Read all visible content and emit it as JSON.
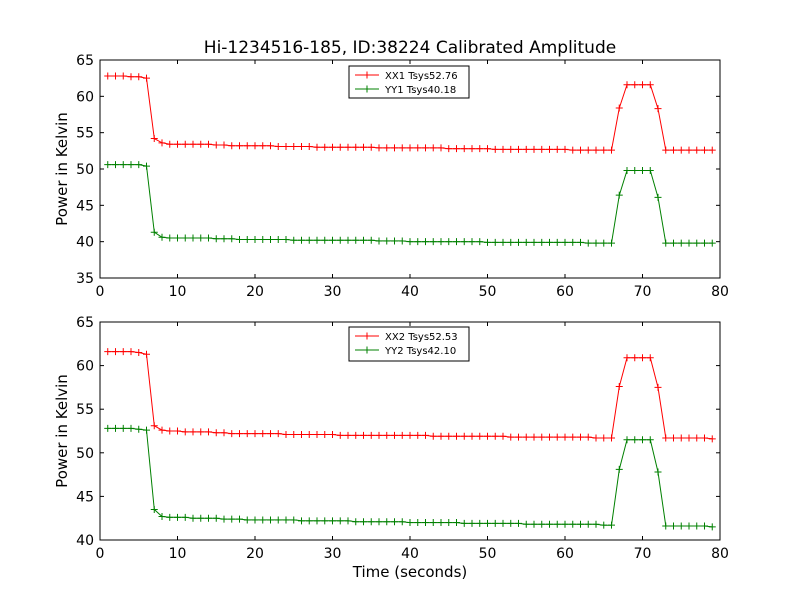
{
  "figure": {
    "title": "Hi-1234516-185, ID:38224 Calibrated Amplitude",
    "colors": {
      "red": "#ff0000",
      "green": "#008000"
    }
  },
  "chart_data": [
    {
      "type": "line",
      "title": "Hi-1234516-185, ID:38224 Calibrated Amplitude",
      "xlabel": "",
      "ylabel": "Power in Kelvin",
      "xlim": [
        0,
        80
      ],
      "ylim": [
        35,
        65
      ],
      "xticks": [
        0,
        10,
        20,
        30,
        40,
        50,
        60,
        70,
        80
      ],
      "yticks": [
        35,
        40,
        45,
        50,
        55,
        60,
        65
      ],
      "grid": false,
      "legend_position": "top-center",
      "x": [
        1,
        2,
        3,
        4,
        5,
        6,
        7,
        8,
        9,
        10,
        11,
        12,
        13,
        14,
        15,
        16,
        17,
        18,
        19,
        20,
        21,
        22,
        23,
        24,
        25,
        26,
        27,
        28,
        29,
        30,
        31,
        32,
        33,
        34,
        35,
        36,
        37,
        38,
        39,
        40,
        41,
        42,
        43,
        44,
        45,
        46,
        47,
        48,
        49,
        50,
        51,
        52,
        53,
        54,
        55,
        56,
        57,
        58,
        59,
        60,
        61,
        62,
        63,
        64,
        65,
        66,
        67,
        68,
        69,
        70,
        71,
        72,
        73,
        74,
        75,
        76,
        77,
        78,
        79
      ],
      "series": [
        {
          "name": "XX1 Tsys52.76",
          "color": "#ff0000",
          "values": [
            62.8,
            62.8,
            62.8,
            62.7,
            62.7,
            62.5,
            54.2,
            53.6,
            53.4,
            53.4,
            53.4,
            53.4,
            53.4,
            53.4,
            53.3,
            53.3,
            53.2,
            53.2,
            53.2,
            53.2,
            53.2,
            53.2,
            53.1,
            53.1,
            53.1,
            53.1,
            53.1,
            53.0,
            53.0,
            53.0,
            53.0,
            53.0,
            53.0,
            53.0,
            53.0,
            52.9,
            52.9,
            52.9,
            52.9,
            52.9,
            52.9,
            52.9,
            52.9,
            52.9,
            52.8,
            52.8,
            52.8,
            52.8,
            52.8,
            52.8,
            52.7,
            52.7,
            52.7,
            52.7,
            52.7,
            52.7,
            52.7,
            52.7,
            52.7,
            52.7,
            52.6,
            52.6,
            52.6,
            52.6,
            52.6,
            52.6,
            58.4,
            61.6,
            61.6,
            61.6,
            61.6,
            58.3,
            52.6,
            52.6,
            52.6,
            52.6,
            52.6,
            52.6,
            52.6
          ]
        },
        {
          "name": "YY1 Tsys40.18",
          "color": "#008000",
          "values": [
            50.6,
            50.6,
            50.6,
            50.6,
            50.6,
            50.4,
            41.3,
            40.6,
            40.5,
            40.5,
            40.5,
            40.5,
            40.5,
            40.5,
            40.4,
            40.4,
            40.4,
            40.3,
            40.3,
            40.3,
            40.3,
            40.3,
            40.3,
            40.3,
            40.2,
            40.2,
            40.2,
            40.2,
            40.2,
            40.2,
            40.2,
            40.2,
            40.2,
            40.2,
            40.2,
            40.1,
            40.1,
            40.1,
            40.1,
            40.0,
            40.0,
            40.0,
            40.0,
            40.0,
            40.0,
            40.0,
            40.0,
            40.0,
            40.0,
            39.9,
            39.9,
            39.9,
            39.9,
            39.9,
            39.9,
            39.9,
            39.9,
            39.9,
            39.9,
            39.9,
            39.9,
            39.9,
            39.8,
            39.8,
            39.8,
            39.8,
            46.4,
            49.8,
            49.8,
            49.8,
            49.8,
            46.1,
            39.8,
            39.8,
            39.8,
            39.8,
            39.8,
            39.8,
            39.8
          ]
        }
      ]
    },
    {
      "type": "line",
      "title": "",
      "xlabel": "Time (seconds)",
      "ylabel": "Power in Kelvin",
      "xlim": [
        0,
        80
      ],
      "ylim": [
        40,
        65
      ],
      "xticks": [
        0,
        10,
        20,
        30,
        40,
        50,
        60,
        70,
        80
      ],
      "yticks": [
        40,
        45,
        50,
        55,
        60,
        65
      ],
      "grid": false,
      "legend_position": "top-center",
      "x": [
        1,
        2,
        3,
        4,
        5,
        6,
        7,
        8,
        9,
        10,
        11,
        12,
        13,
        14,
        15,
        16,
        17,
        18,
        19,
        20,
        21,
        22,
        23,
        24,
        25,
        26,
        27,
        28,
        29,
        30,
        31,
        32,
        33,
        34,
        35,
        36,
        37,
        38,
        39,
        40,
        41,
        42,
        43,
        44,
        45,
        46,
        47,
        48,
        49,
        50,
        51,
        52,
        53,
        54,
        55,
        56,
        57,
        58,
        59,
        60,
        61,
        62,
        63,
        64,
        65,
        66,
        67,
        68,
        69,
        70,
        71,
        72,
        73,
        74,
        75,
        76,
        77,
        78,
        79
      ],
      "series": [
        {
          "name": "XX2 Tsys52.53",
          "color": "#ff0000",
          "values": [
            61.6,
            61.6,
            61.6,
            61.6,
            61.5,
            61.3,
            53.1,
            52.6,
            52.5,
            52.5,
            52.4,
            52.4,
            52.4,
            52.4,
            52.3,
            52.3,
            52.2,
            52.2,
            52.2,
            52.2,
            52.2,
            52.2,
            52.2,
            52.1,
            52.1,
            52.1,
            52.1,
            52.1,
            52.1,
            52.1,
            52.0,
            52.0,
            52.0,
            52.0,
            52.0,
            52.0,
            52.0,
            52.0,
            52.0,
            52.0,
            52.0,
            52.0,
            51.9,
            51.9,
            51.9,
            51.9,
            51.9,
            51.9,
            51.9,
            51.9,
            51.9,
            51.9,
            51.8,
            51.8,
            51.8,
            51.8,
            51.8,
            51.8,
            51.8,
            51.8,
            51.8,
            51.8,
            51.8,
            51.7,
            51.7,
            51.7,
            57.6,
            60.9,
            60.9,
            60.9,
            60.9,
            57.5,
            51.7,
            51.7,
            51.7,
            51.7,
            51.7,
            51.7,
            51.6
          ]
        },
        {
          "name": "YY2 Tsys42.10",
          "color": "#008000",
          "values": [
            52.8,
            52.8,
            52.8,
            52.8,
            52.7,
            52.6,
            43.5,
            42.7,
            42.6,
            42.6,
            42.6,
            42.5,
            42.5,
            42.5,
            42.5,
            42.4,
            42.4,
            42.4,
            42.3,
            42.3,
            42.3,
            42.3,
            42.3,
            42.3,
            42.3,
            42.2,
            42.2,
            42.2,
            42.2,
            42.2,
            42.2,
            42.2,
            42.1,
            42.1,
            42.1,
            42.1,
            42.1,
            42.1,
            42.1,
            42.0,
            42.0,
            42.0,
            42.0,
            42.0,
            42.0,
            42.0,
            41.9,
            41.9,
            41.9,
            41.9,
            41.9,
            41.9,
            41.9,
            41.9,
            41.8,
            41.8,
            41.8,
            41.8,
            41.8,
            41.8,
            41.8,
            41.8,
            41.8,
            41.8,
            41.7,
            41.7,
            48.1,
            51.5,
            51.5,
            51.5,
            51.5,
            47.8,
            41.6,
            41.6,
            41.6,
            41.6,
            41.6,
            41.6,
            41.5
          ]
        }
      ]
    }
  ]
}
